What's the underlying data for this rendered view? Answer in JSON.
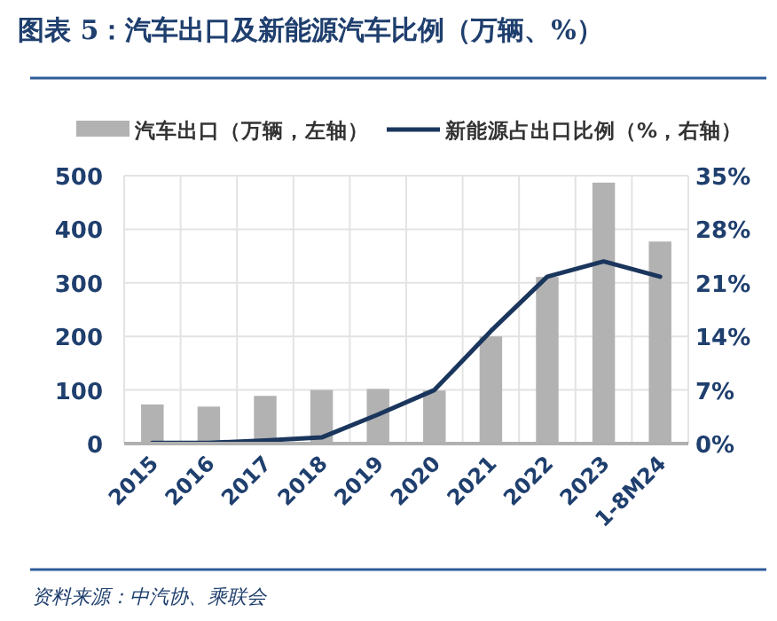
{
  "chart_data": {
    "type": "bar",
    "title": "图表 5：汽车出口及新能源汽车比例（万辆、%）",
    "categories": [
      "2015",
      "2016",
      "2017",
      "2018",
      "2019",
      "2020",
      "2021",
      "2022",
      "2023",
      "1-8M24"
    ],
    "series": [
      {
        "name": "汽车出口（万辆，左轴）",
        "color": "#b2b2b2",
        "values": [
          73,
          69,
          89,
          100,
          102,
          99,
          200,
          311,
          487,
          377
        ]
      },
      {
        "name": "新能源占出口比例（%，右轴）",
        "type": "line",
        "axis": "y2",
        "color": "#1b365d",
        "values": [
          0.1,
          0.1,
          0.4,
          0.8,
          3.8,
          7.0,
          14.7,
          21.8,
          23.8,
          21.8
        ]
      }
    ],
    "ylim": [
      0,
      500
    ],
    "yticks": [
      0,
      100,
      200,
      300,
      400,
      500
    ],
    "y2lim": [
      0,
      35
    ],
    "y2ticks": [
      {
        "value": 0,
        "label": "0%"
      },
      {
        "value": 7,
        "label": "7%"
      },
      {
        "value": 14,
        "label": "14%"
      },
      {
        "value": 21,
        "label": "21%"
      },
      {
        "value": 28,
        "label": "28%"
      },
      {
        "value": 35,
        "label": "35%"
      }
    ],
    "grid": true,
    "legend": "top",
    "marker": "none",
    "annotations": [
      "资料来源：中汽协、乘联会"
    ]
  }
}
